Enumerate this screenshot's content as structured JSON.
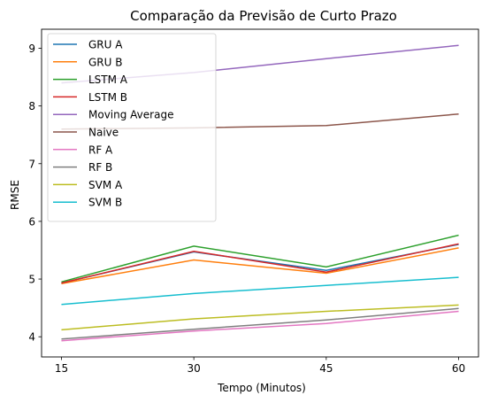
{
  "chart_data": {
    "type": "line",
    "title": "Comparação da Previsão de Curto Prazo",
    "xlabel": "Tempo (Minutos)",
    "ylabel": "RMSE",
    "x": [
      15,
      30,
      45,
      60
    ],
    "x_tick_labels": [
      "15",
      "30",
      "45",
      "60"
    ],
    "y_ticks": [
      4,
      5,
      6,
      7,
      8,
      9
    ],
    "y_tick_labels": [
      "4",
      "5",
      "6",
      "7",
      "8",
      "9"
    ],
    "xlim": [
      12.75,
      62.25
    ],
    "ylim": [
      3.65,
      9.33
    ],
    "grid": false,
    "legend_position": "upper-left",
    "series": [
      {
        "name": "GRU A",
        "color": "#1f77b4",
        "values": [
          4.93,
          5.47,
          5.15,
          5.6
        ]
      },
      {
        "name": "GRU B",
        "color": "#ff7f0e",
        "values": [
          4.92,
          5.33,
          5.1,
          5.54
        ]
      },
      {
        "name": "LSTM A",
        "color": "#2ca02c",
        "values": [
          4.95,
          5.57,
          5.21,
          5.76
        ]
      },
      {
        "name": "LSTM B",
        "color": "#d62728",
        "values": [
          4.93,
          5.48,
          5.12,
          5.61
        ]
      },
      {
        "name": "Moving Average",
        "color": "#9467bd",
        "values": [
          8.4,
          8.58,
          8.82,
          9.05
        ]
      },
      {
        "name": "Naive",
        "color": "#8c564b",
        "values": [
          7.6,
          7.62,
          7.66,
          7.86
        ]
      },
      {
        "name": "RF A",
        "color": "#e377c2",
        "values": [
          3.93,
          4.1,
          4.23,
          4.44
        ]
      },
      {
        "name": "RF B",
        "color": "#7f7f7f",
        "values": [
          3.96,
          4.13,
          4.29,
          4.49
        ]
      },
      {
        "name": "SVM A",
        "color": "#bcbd22",
        "values": [
          4.12,
          4.31,
          4.44,
          4.55
        ]
      },
      {
        "name": "SVM B",
        "color": "#17becf",
        "values": [
          4.56,
          4.75,
          4.89,
          5.03
        ]
      }
    ]
  }
}
